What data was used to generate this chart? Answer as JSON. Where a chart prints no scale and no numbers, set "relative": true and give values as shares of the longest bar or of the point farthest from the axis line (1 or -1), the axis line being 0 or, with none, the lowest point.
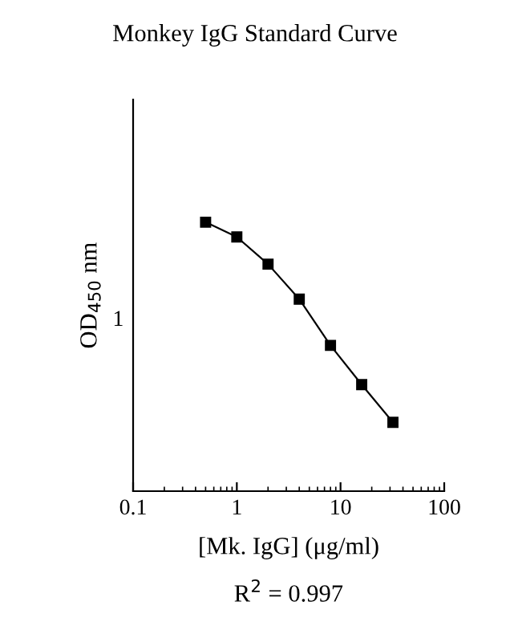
{
  "chart_data": {
    "type": "line",
    "title": "Monkey IgG Standard Curve",
    "xlabel": "[Mk. IgG] (μg/ml)",
    "ylabel": "OD$_{450}$ nm",
    "annotations": [
      "1",
      "R$^{2}$ = 0.997"
    ],
    "x": [
      0.5,
      1,
      2,
      4,
      8,
      16,
      32
    ],
    "series": [
      {
        "color": "#000000",
        "values": [
          1,
          0.945,
          0.844,
          0.714,
          0.542,
          0.396,
          0.256
        ]
      }
    ],
    "relative": true,
    "log": "x",
    "marker": "square",
    "line_style": "solid",
    "xlim": [
      0.1,
      100
    ],
    "xticks": [
      0.1,
      1,
      10,
      100
    ]
  }
}
